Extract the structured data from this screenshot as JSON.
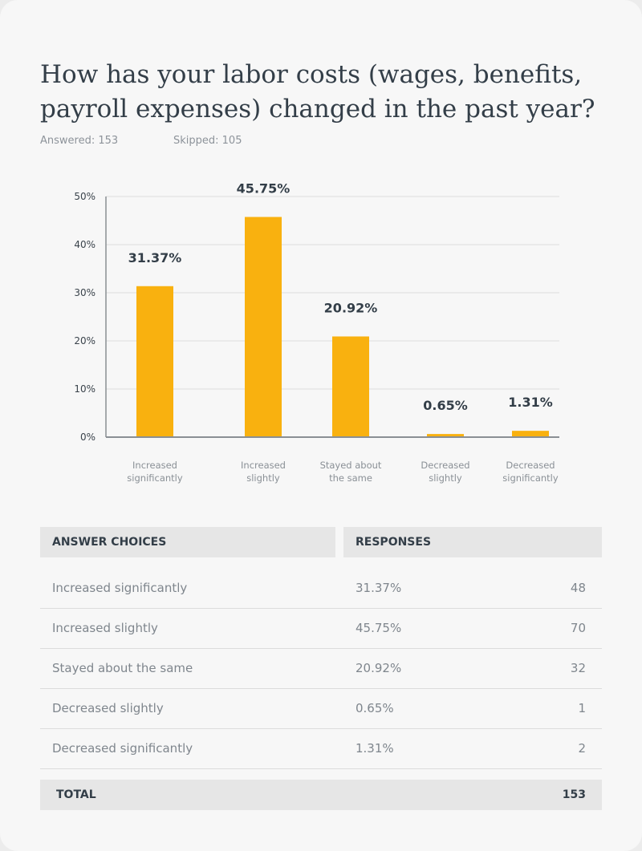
{
  "question": {
    "title": "How has your labor costs (wages, benefits, payroll expenses) changed in the past year?",
    "answered": "Answered: 153",
    "skipped": "Skipped: 105"
  },
  "colors": {
    "bar": "#f9b10f",
    "grid": "#dddddd",
    "axis": "#8a8f94"
  },
  "chart_data": {
    "type": "bar",
    "categories": [
      [
        "Increased",
        "significantly"
      ],
      [
        "Increased",
        "slightly"
      ],
      [
        "Stayed about",
        "the same"
      ],
      [
        "Decreased",
        "slightly"
      ],
      [
        "Decreased",
        "significantly"
      ]
    ],
    "values": [
      31.37,
      45.75,
      20.92,
      0.65,
      1.31
    ],
    "data_labels": [
      "31.37%",
      "45.75%",
      "20.92%",
      "0.65%",
      "1.31%"
    ],
    "ylim": [
      0,
      50
    ],
    "yticks": [
      0,
      10,
      20,
      30,
      40,
      50
    ],
    "ytick_labels": [
      "0%",
      "10%",
      "20%",
      "30%",
      "40%",
      "50%"
    ],
    "grid": true
  },
  "table": {
    "header_choices": "ANSWER CHOICES",
    "header_responses": "RESPONSES",
    "rows": [
      {
        "choice": "Increased significantly",
        "pct": "31.37%",
        "count": "48"
      },
      {
        "choice": "Increased slightly",
        "pct": "45.75%",
        "count": "70"
      },
      {
        "choice": "Stayed about the same",
        "pct": "20.92%",
        "count": "32"
      },
      {
        "choice": "Decreased slightly",
        "pct": "0.65%",
        "count": "1"
      },
      {
        "choice": "Decreased significantly",
        "pct": "1.31%",
        "count": "2"
      }
    ],
    "total_label": "TOTAL",
    "total_value": "153"
  }
}
